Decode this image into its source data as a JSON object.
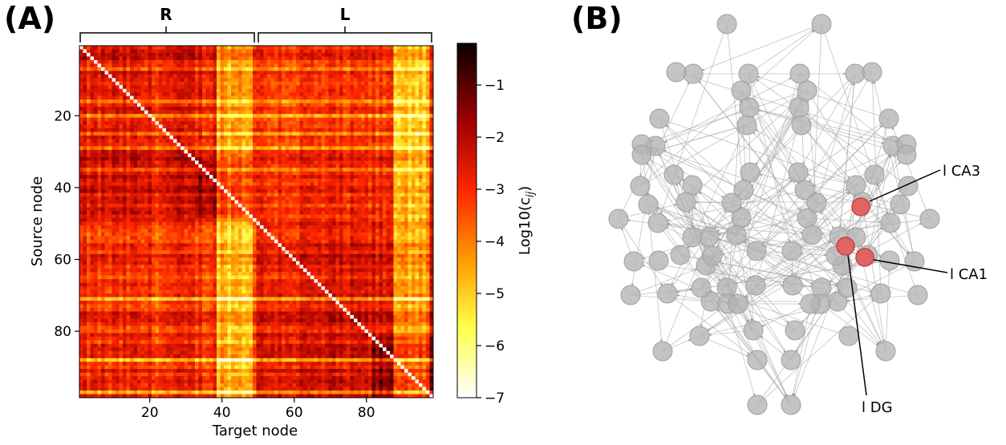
{
  "panels": {
    "a_letter": "(A)",
    "b_letter": "(B)"
  },
  "chart_data": [
    {
      "type": "heatmap",
      "panel": "(A)",
      "xlabel": "Target node",
      "ylabel": "Source node",
      "x_range": [
        1,
        98
      ],
      "y_range": [
        1,
        98
      ],
      "x_ticks": [
        20,
        40,
        60,
        80
      ],
      "y_ticks": [
        20,
        40,
        60,
        80
      ],
      "hemisphere_groups": [
        {
          "label": "R",
          "from_node": 1,
          "to_node": 49
        },
        {
          "label": "L",
          "from_node": 50,
          "to_node": 98
        }
      ],
      "diagonal": "white (self-connections)",
      "colormap": "hot_r",
      "colorbar": {
        "label": "Log10(c",
        "label_sub": "ij",
        "label_close": ")",
        "range": [
          -7,
          -0.2
        ],
        "ticks": [
          -1,
          -2,
          -3,
          -4,
          -5,
          -6,
          -7
        ]
      },
      "blocks_log10": {
        "within_hemisphere_typical": -2.5,
        "between_hemisphere_typical": -3.0,
        "weak_columns_typical": -4.5,
        "weak_rows_typical": -4.0,
        "bright_columns_nodes": [
          39,
          40,
          41,
          42,
          43,
          44,
          45,
          46,
          47,
          48
        ],
        "strong_block_near_nodes": [
          [
            33,
            48
          ],
          [
            82,
            98
          ]
        ]
      }
    },
    {
      "type": "network",
      "panel": "(B)",
      "node_color": "#b3b3b3",
      "edge_color": "#999999",
      "highlight_color": "#e06060",
      "highlighted_nodes": [
        {
          "label": "l CA3"
        },
        {
          "label": "l CA1"
        },
        {
          "label": "l DG"
        }
      ]
    }
  ]
}
